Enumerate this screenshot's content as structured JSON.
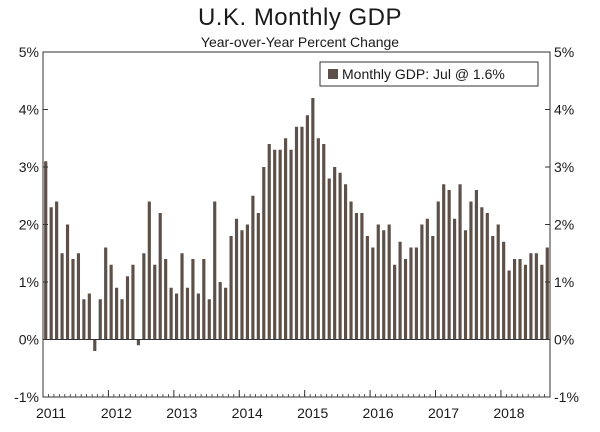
{
  "chart_data": {
    "type": "bar",
    "title": "U.K. Monthly GDP",
    "subtitle": "Year-over-Year Percent Change",
    "xlabel": "",
    "ylabel": "",
    "ylim": [
      -1,
      5
    ],
    "y_ticks": [
      "-1%",
      "0%",
      "1%",
      "2%",
      "3%",
      "4%",
      "5%"
    ],
    "y_tick_values": [
      -1,
      0,
      1,
      2,
      3,
      4,
      5
    ],
    "x_ticks": [
      "2011",
      "2012",
      "2013",
      "2014",
      "2015",
      "2016",
      "2017",
      "2018"
    ],
    "x_tick_positions": [
      0,
      12,
      24,
      36,
      48,
      60,
      72,
      84
    ],
    "period_start": "Jan 2011",
    "period_end": "Jul 2018",
    "grid": false,
    "legend_position": "top-right",
    "series": [
      {
        "name": "Monthly GDP: Jul @ 1.6%",
        "color": "#5c5048",
        "values": [
          3.1,
          2.3,
          2.4,
          1.5,
          2.0,
          1.4,
          1.5,
          0.7,
          0.8,
          -0.2,
          0.7,
          1.6,
          1.3,
          0.9,
          0.7,
          1.1,
          1.3,
          -0.1,
          1.5,
          2.4,
          1.3,
          2.2,
          1.4,
          0.9,
          0.8,
          1.5,
          0.9,
          1.4,
          0.8,
          1.4,
          0.7,
          2.4,
          1.0,
          0.9,
          1.8,
          2.1,
          1.9,
          2.0,
          2.5,
          2.2,
          3.0,
          3.4,
          3.3,
          3.3,
          3.5,
          3.3,
          3.7,
          3.7,
          3.9,
          4.2,
          3.5,
          3.4,
          2.8,
          3.0,
          2.9,
          2.7,
          2.4,
          2.2,
          2.2,
          1.8,
          1.6,
          2.0,
          1.9,
          2.0,
          1.3,
          1.7,
          1.4,
          1.6,
          1.6,
          2.0,
          2.1,
          1.8,
          2.4,
          2.7,
          2.6,
          2.1,
          2.7,
          1.9,
          2.4,
          2.6,
          2.3,
          2.2,
          1.8,
          2.0,
          1.7,
          1.2,
          1.4,
          1.4,
          1.3,
          1.5,
          1.5,
          1.3,
          1.6
        ]
      }
    ]
  }
}
